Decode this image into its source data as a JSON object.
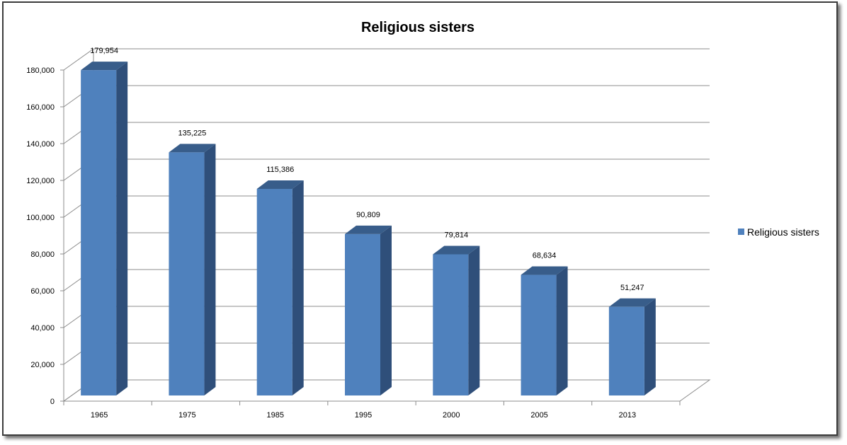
{
  "chart_data": {
    "type": "bar",
    "title": "Religious sisters",
    "categories": [
      "1965",
      "1975",
      "1985",
      "1995",
      "2000",
      "2005",
      "2013"
    ],
    "series": [
      {
        "name": "Religious sisters",
        "values": [
          179954,
          135225,
          115386,
          90809,
          79814,
          68634,
          51247
        ],
        "value_labels": [
          "179,954",
          "135,225",
          "115,386",
          "90,809",
          "79,814",
          "68,634",
          "51,247"
        ],
        "color": "#4f81bd"
      }
    ],
    "y_ticks": [
      0,
      20000,
      40000,
      60000,
      80000,
      100000,
      120000,
      140000,
      160000,
      180000
    ],
    "y_tick_labels": [
      "0",
      "20,000",
      "40,000",
      "60,000",
      "80,000",
      "100,000",
      "120,000",
      "140,000",
      "160,000",
      "180,000"
    ],
    "ylim": [
      0,
      180000
    ],
    "grid": true,
    "legend_position": "right",
    "style": "3d-column"
  }
}
